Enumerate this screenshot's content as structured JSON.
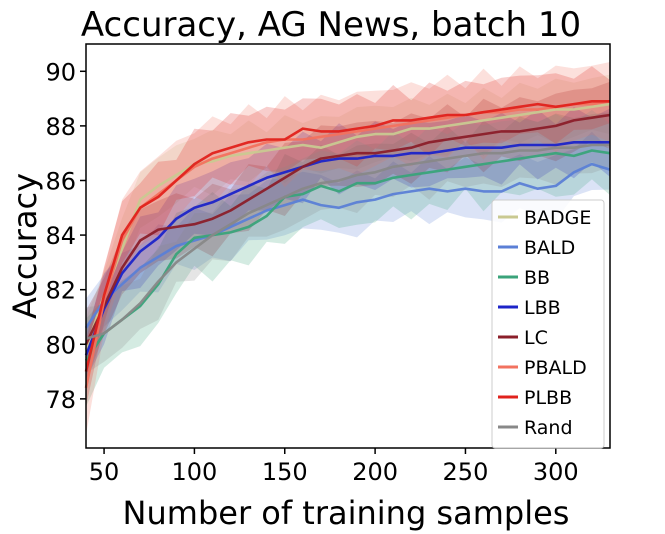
{
  "chart_data": {
    "type": "line",
    "title": "Accuracy, AG News, batch 10",
    "xlabel": "Number of training samples",
    "ylabel": "Accuracy",
    "xlim": [
      40,
      330
    ],
    "ylim": [
      76.2,
      91
    ],
    "xticks": [
      50,
      100,
      150,
      200,
      250,
      300
    ],
    "yticks": [
      78,
      80,
      82,
      84,
      86,
      88,
      90
    ],
    "grid": false,
    "legend_position": "lower-right",
    "x": [
      40,
      50,
      60,
      70,
      80,
      90,
      100,
      110,
      120,
      130,
      140,
      150,
      160,
      170,
      180,
      190,
      200,
      210,
      220,
      230,
      240,
      250,
      260,
      270,
      280,
      290,
      300,
      310,
      320,
      330
    ],
    "series": [
      {
        "name": "BADGE",
        "color": "#c9c991",
        "band": 1.2,
        "values": [
          79.8,
          81.8,
          83.5,
          85.3,
          85.8,
          86.2,
          86.6,
          86.7,
          86.9,
          87.0,
          87.1,
          87.2,
          87.3,
          87.2,
          87.4,
          87.6,
          87.7,
          87.7,
          87.9,
          87.9,
          88.0,
          88.1,
          88.2,
          88.3,
          88.4,
          88.5,
          88.6,
          88.6,
          88.7,
          88.8
        ]
      },
      {
        "name": "BALD",
        "color": "#5b7fd6",
        "band": 1.2,
        "values": [
          80.6,
          81.6,
          82.2,
          82.8,
          83.2,
          83.6,
          83.8,
          84.0,
          84.3,
          84.6,
          84.9,
          85.1,
          85.3,
          85.1,
          85.0,
          85.2,
          85.3,
          85.5,
          85.6,
          85.7,
          85.6,
          85.7,
          85.6,
          85.6,
          85.9,
          85.7,
          85.8,
          86.3,
          86.6,
          86.4
        ]
      },
      {
        "name": "BB",
        "color": "#3aa37a",
        "band": 1.6,
        "values": [
          79.4,
          80.4,
          80.9,
          81.4,
          82.2,
          83.3,
          83.9,
          84.0,
          84.1,
          84.3,
          84.7,
          85.4,
          85.5,
          85.8,
          85.6,
          85.9,
          85.9,
          86.1,
          86.2,
          86.3,
          86.4,
          86.5,
          86.6,
          86.7,
          86.8,
          86.9,
          87.0,
          86.9,
          87.1,
          87.0
        ]
      },
      {
        "name": "LBB",
        "color": "#1c24c8",
        "band": 1.3,
        "values": [
          79.6,
          81.3,
          82.6,
          83.4,
          83.9,
          84.6,
          85.0,
          85.2,
          85.5,
          85.8,
          86.1,
          86.3,
          86.5,
          86.7,
          86.8,
          86.8,
          86.9,
          86.9,
          87.0,
          87.0,
          87.1,
          87.2,
          87.2,
          87.2,
          87.3,
          87.3,
          87.3,
          87.4,
          87.4,
          87.4
        ]
      },
      {
        "name": "LC",
        "color": "#8b1f2a",
        "band": 1.3,
        "values": [
          80.0,
          81.4,
          82.8,
          83.8,
          84.2,
          84.3,
          84.4,
          84.6,
          84.9,
          85.3,
          85.7,
          86.1,
          86.5,
          86.8,
          86.9,
          87.0,
          87.0,
          87.1,
          87.2,
          87.4,
          87.5,
          87.6,
          87.7,
          87.8,
          87.8,
          87.9,
          88.0,
          88.2,
          88.3,
          88.4
        ]
      },
      {
        "name": "PBALD",
        "color": "#f2725f",
        "band": 1.6,
        "values": [
          78.4,
          81.6,
          83.8,
          85.0,
          85.5,
          86.0,
          86.5,
          86.8,
          87.0,
          87.2,
          87.4,
          87.5,
          87.5,
          87.6,
          87.7,
          87.8,
          87.9,
          88.0,
          88.1,
          88.2,
          88.3,
          88.4,
          88.5,
          88.5,
          88.6,
          88.6,
          88.7,
          88.8,
          88.8,
          88.9
        ]
      },
      {
        "name": "PLBB",
        "color": "#e0221c",
        "band": 1.3,
        "values": [
          79.0,
          81.8,
          84.0,
          85.0,
          85.4,
          86.0,
          86.6,
          87.0,
          87.2,
          87.4,
          87.5,
          87.5,
          87.9,
          87.8,
          87.8,
          87.9,
          88.0,
          88.2,
          88.2,
          88.3,
          88.4,
          88.4,
          88.5,
          88.6,
          88.7,
          88.8,
          88.7,
          88.8,
          88.9,
          88.9
        ]
      },
      {
        "name": "Rand",
        "color": "#888888",
        "band": 1.3,
        "values": [
          80.2,
          80.4,
          80.9,
          81.5,
          82.3,
          83.0,
          83.5,
          84.0,
          84.4,
          84.8,
          85.1,
          85.4,
          85.7,
          85.9,
          86.0,
          86.2,
          86.3,
          86.5,
          86.6,
          86.7,
          86.8,
          86.9,
          87.0,
          87.0,
          87.1,
          87.1,
          87.2,
          87.2,
          87.3,
          87.3
        ]
      }
    ]
  }
}
